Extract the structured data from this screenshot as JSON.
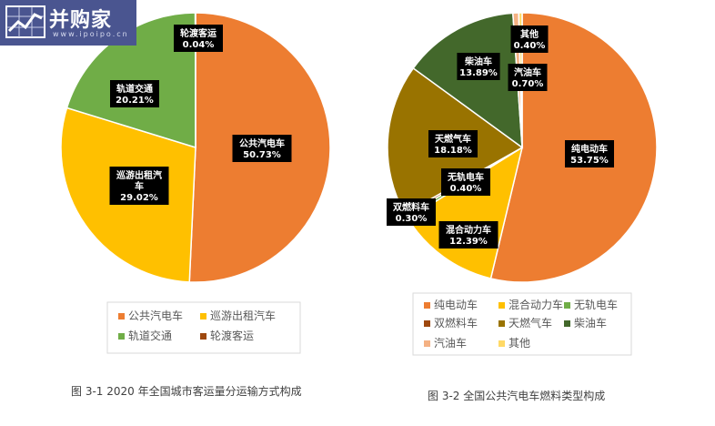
{
  "watermark": {
    "name": "并购家",
    "url": "www.ipoipo.cn"
  },
  "captions": {
    "left": "图 3-1  2020 年全国城市客运量分运输方式构成",
    "right": "图 3-2 全国公共汽电车燃料类型构成"
  },
  "chart_data": [
    {
      "type": "pie",
      "title": "",
      "start_angle": "12 o'clock, clockwise",
      "legend_position": "bottom",
      "slices": [
        {
          "label": "公共汽电车",
          "label_lines": [
            "公共汽电车"
          ],
          "value": 50.73,
          "display": "50.73%",
          "color": "#ED7D31"
        },
        {
          "label": "巡游出租汽车",
          "label_lines": [
            "巡游出租汽",
            "车"
          ],
          "value": 29.02,
          "display": "29.02%",
          "color": "#FFC000"
        },
        {
          "label": "轨道交通",
          "label_lines": [
            "轨道交通"
          ],
          "value": 20.21,
          "display": "20.21%",
          "color": "#70AD47"
        },
        {
          "label": "轮渡客运",
          "label_lines": [
            "轮渡客运"
          ],
          "value": 0.04,
          "display": "0.04%",
          "color": "#9E480E"
        }
      ],
      "legend": [
        "公共汽电车",
        "巡游出租汽车",
        "轨道交通",
        "轮渡客运"
      ]
    },
    {
      "type": "pie",
      "title": "",
      "start_angle": "12 o'clock, clockwise",
      "legend_position": "bottom",
      "slices": [
        {
          "label": "纯电动车",
          "label_lines": [
            "纯电动车"
          ],
          "value": 53.75,
          "display": "53.75%",
          "color": "#ED7D31"
        },
        {
          "label": "混合动力车",
          "label_lines": [
            "混合动力车"
          ],
          "value": 12.39,
          "display": "12.39%",
          "color": "#FFC000"
        },
        {
          "label": "无轨电车",
          "label_lines": [
            "无轨电车"
          ],
          "value": 0.4,
          "display": "0.40%",
          "color": "#70AD47"
        },
        {
          "label": "双燃料车",
          "label_lines": [
            "双燃料车"
          ],
          "value": 0.3,
          "display": "0.30%",
          "color": "#9E480E"
        },
        {
          "label": "天燃气车",
          "label_lines": [
            "天燃气车"
          ],
          "value": 18.18,
          "display": "18.18%",
          "color": "#997300"
        },
        {
          "label": "柴油车",
          "label_lines": [
            "柴油车"
          ],
          "value": 13.89,
          "display": "13.89%",
          "color": "#43682B"
        },
        {
          "label": "汽油车",
          "label_lines": [
            "汽油车"
          ],
          "value": 0.7,
          "display": "0.70%",
          "color": "#F4B183"
        },
        {
          "label": "其他",
          "label_lines": [
            "其他"
          ],
          "value": 0.4,
          "display": "0.40%",
          "color": "#FFD966"
        }
      ],
      "legend": [
        "纯电动车",
        "混合动力车",
        "无轨电车",
        "双燃料车",
        "天燃气车",
        "柴油车",
        "汽油车",
        "其他"
      ]
    }
  ]
}
